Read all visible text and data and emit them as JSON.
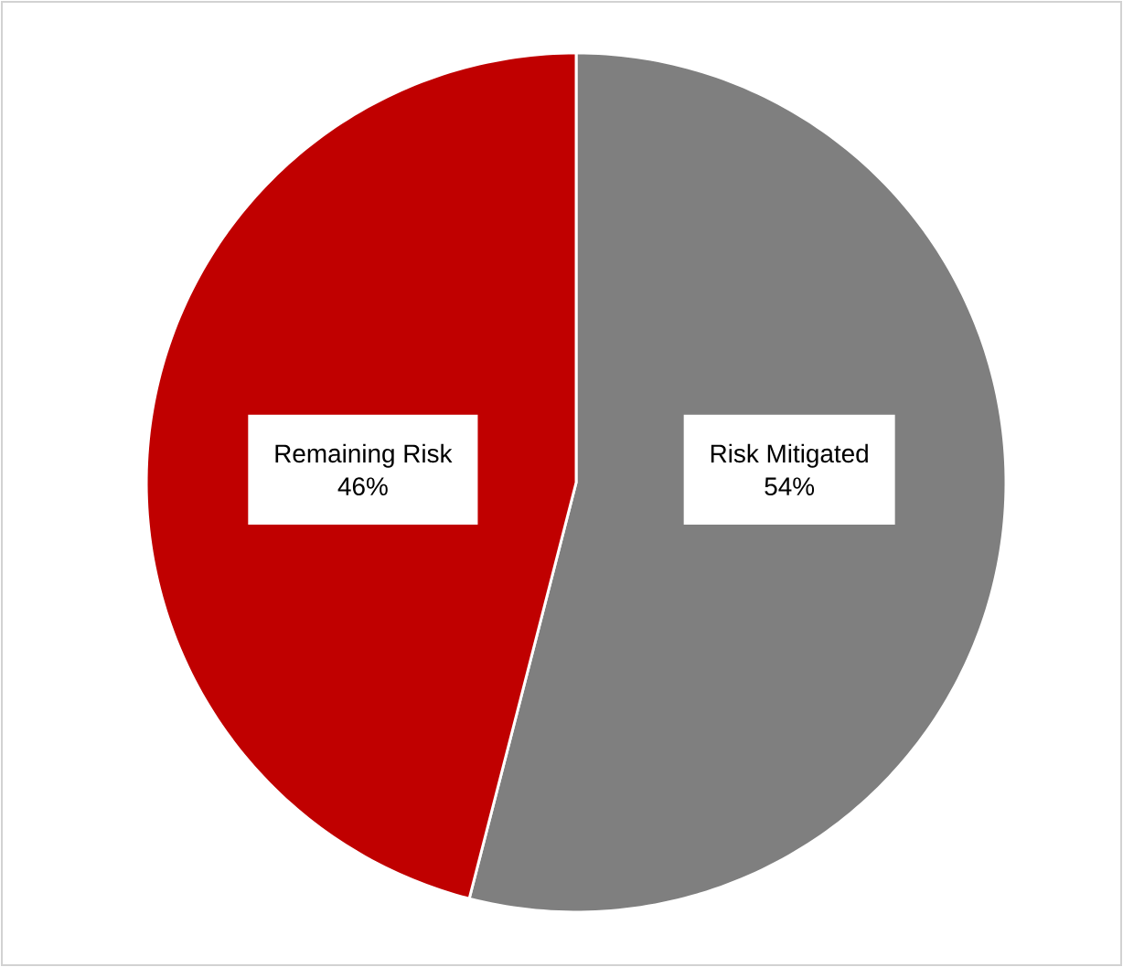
{
  "chart_data": {
    "type": "pie",
    "categories": [
      "Risk Mitigated",
      "Remaining Risk"
    ],
    "values": [
      54,
      46
    ],
    "colors": [
      "#7f7f7f",
      "#c00000"
    ],
    "value_labels": [
      "54%",
      "46%"
    ]
  }
}
